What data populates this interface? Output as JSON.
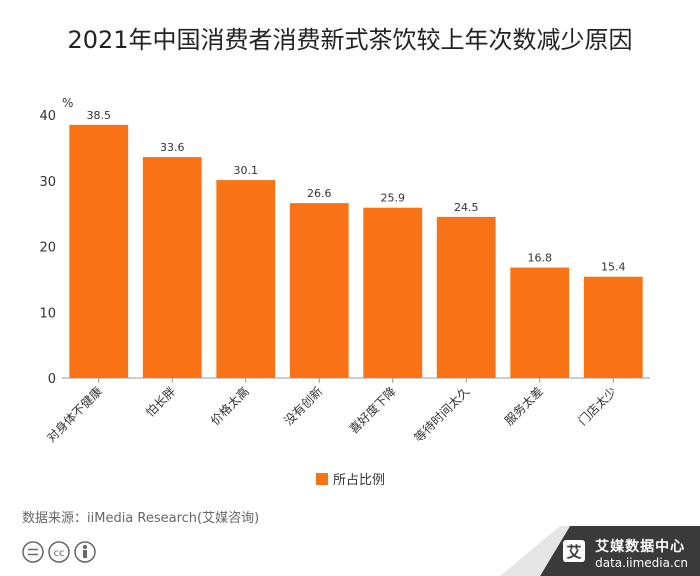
{
  "chart_data": {
    "type": "bar",
    "title": "2021年中国消费者消费新式茶饮较上年次数减少原因",
    "ylabel": "%",
    "xlabel": "",
    "ylim": [
      0,
      40
    ],
    "yticks": [
      0,
      10,
      20,
      30,
      40
    ],
    "categories": [
      "对身体不健康",
      "怕长胖",
      "价格太高",
      "没有创新",
      "喜好度下降",
      "等待时间太久",
      "服务太差",
      "门店太少"
    ],
    "series": [
      {
        "name": "所占比例",
        "values": [
          38.5,
          33.6,
          30.1,
          26.6,
          25.9,
          24.5,
          16.8,
          15.4
        ]
      }
    ],
    "legend_position": "bottom",
    "grid": false,
    "bar_color": "#f97316"
  },
  "footer": {
    "source": "数据来源：iiMedia Research(艾媒咨询)",
    "brand_name": "艾媒数据中心",
    "brand_url": "data.iimedia.cn",
    "brand_logo_char": "艾"
  }
}
